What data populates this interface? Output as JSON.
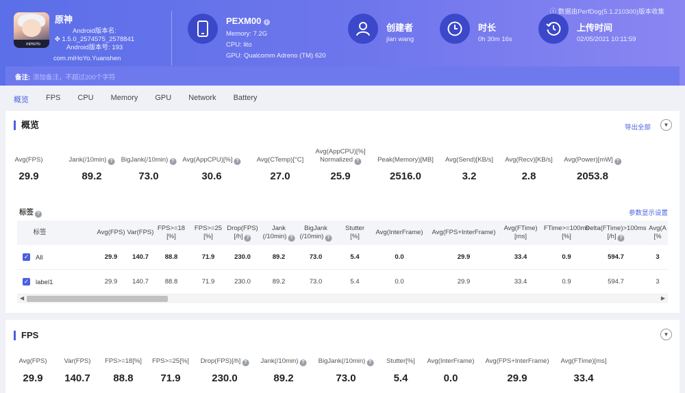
{
  "header": {
    "notice": "ⓘ 数据由PerfDog(5.1.210300)版本收集",
    "app": {
      "name": "原神",
      "android_version_label": "Android版本名:",
      "version": "1.5.0_2574575_2578841",
      "android_version_code": "Android版本号: 193",
      "package": "com.miHoYo.Yuanshen",
      "icon_logo_text": "miHoYo"
    },
    "device": {
      "name": "PEXM00",
      "memory": "Memory: 7.2G",
      "cpu": "CPU: lito",
      "gpu": "GPU: Qualcomm Adreno (TM) 620"
    },
    "creator": {
      "title": "创建者",
      "value": "jian wang"
    },
    "duration": {
      "title": "时长",
      "value": "0h 30m 16s"
    },
    "upload": {
      "title": "上传时间",
      "value": "02/05/2021 10:11:59"
    },
    "remark": {
      "label": "备注:",
      "placeholder": "添加备注，不超过200个字符"
    }
  },
  "tabs": [
    "概览",
    "FPS",
    "CPU",
    "Memory",
    "GPU",
    "Network",
    "Battery"
  ],
  "overview": {
    "title": "概览",
    "export_label": "导出全部",
    "metrics": [
      {
        "label": "Avg(FPS)",
        "value": "29.9",
        "help": false
      },
      {
        "label": "Jank(/10min)",
        "value": "89.2",
        "help": true
      },
      {
        "label": "BigJank(/10min)",
        "value": "73.0",
        "help": true
      },
      {
        "label": "Avg(AppCPU)[%]",
        "value": "30.6",
        "help": true
      },
      {
        "label": "Avg(CTemp)[°C]",
        "value": "27.0",
        "help": false
      },
      {
        "label": "Avg(AppCPU)[%]",
        "label2": "Normalized",
        "value": "25.9",
        "help": true
      },
      {
        "label": "Peak(Memory)[MB]",
        "value": "2516.0",
        "help": false
      },
      {
        "label": "Avg(Send)[KB/s]",
        "value": "3.2",
        "help": false
      },
      {
        "label": "Avg(Recv)[KB/s]",
        "value": "2.8",
        "help": false
      },
      {
        "label": "Avg(Power)[mW]",
        "value": "2053.8",
        "help": true
      }
    ],
    "tags_label": "标签",
    "param_settings": "参数显示设置",
    "table": {
      "headers": [
        {
          "l1": "标签"
        },
        {
          "l1": "Avg(FPS)"
        },
        {
          "l1": "Var(FPS)"
        },
        {
          "l1": "FPS>=18",
          "l2": "[%]"
        },
        {
          "l1": "FPS>=25",
          "l2": "[%]"
        },
        {
          "l1": "Drop(FPS)",
          "l2": "[/h]",
          "help": true
        },
        {
          "l1": "Jank",
          "l2": "(/10min)",
          "help": true
        },
        {
          "l1": "BigJank",
          "l2": "(/10min)",
          "help": true
        },
        {
          "l1": "Stutter",
          "l2": "[%]"
        },
        {
          "l1": "Avg(InterFrame)"
        },
        {
          "l1": "Avg(FPS+InterFrame)"
        },
        {
          "l1": "Avg(FTime)",
          "l2": "[ms]"
        },
        {
          "l1": "FTime>=100ms",
          "l2": "[%]"
        },
        {
          "l1": "Delta(FTime)>100ms",
          "l2": "[/h]",
          "help": true
        },
        {
          "l1": "Avg(A",
          "l2": "[%"
        }
      ],
      "rows": [
        {
          "name": "All",
          "values": [
            "29.9",
            "140.7",
            "88.8",
            "71.9",
            "230.0",
            "89.2",
            "73.0",
            "5.4",
            "0.0",
            "29.9",
            "33.4",
            "0.9",
            "594.7",
            "3"
          ]
        },
        {
          "name": "label1",
          "values": [
            "29.9",
            "140.7",
            "88.8",
            "71.9",
            "230.0",
            "89.2",
            "73.0",
            "5.4",
            "0.0",
            "29.9",
            "33.4",
            "0.9",
            "594.7",
            "3"
          ]
        }
      ]
    }
  },
  "fps_section": {
    "title": "FPS",
    "metrics": [
      {
        "label": "Avg(FPS)",
        "value": "29.9",
        "help": false
      },
      {
        "label": "Var(FPS)",
        "value": "140.7",
        "help": false
      },
      {
        "label": "FPS>=18[%]",
        "value": "88.8",
        "help": false
      },
      {
        "label": "FPS>=25[%]",
        "value": "71.9",
        "help": false
      },
      {
        "label": "Drop(FPS)[/h]",
        "value": "230.0",
        "help": true
      },
      {
        "label": "Jank(/10min)",
        "value": "89.2",
        "help": true
      },
      {
        "label": "BigJank(/10min)",
        "value": "73.0",
        "help": true
      },
      {
        "label": "Stutter[%]",
        "value": "5.4",
        "help": false
      },
      {
        "label": "Avg(InterFrame)",
        "value": "0.0",
        "help": false
      },
      {
        "label": "Avg(FPS+InterFrame)",
        "value": "29.9",
        "help": false
      },
      {
        "label": "Avg(FTime)[ms]",
        "value": "33.4",
        "help": false
      }
    ]
  },
  "colors": {
    "accent": "#4a5fe0",
    "header_start": "#5b6fe8",
    "header_end": "#8a86f2",
    "icon_circle": "#3b48c9"
  }
}
